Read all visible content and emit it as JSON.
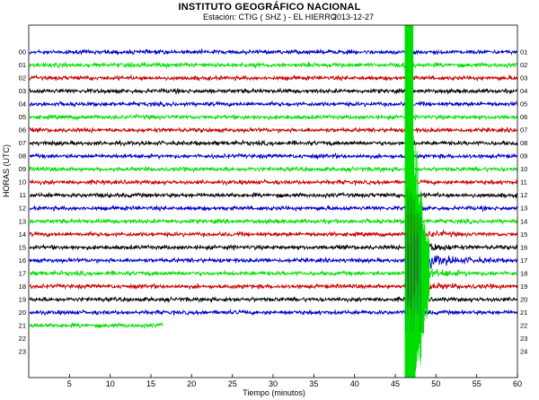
{
  "header": {
    "title": "INSTITUTO GEOGRÁFICO NACIONAL",
    "station": "Estación:  CTIG ( SHZ ) - EL HIERRO",
    "date": "2013-12-27"
  },
  "chart_data": {
    "type": "line",
    "title": "INSTITUTO GEOGRÁFICO NACIONAL",
    "ylabel": "HORAS (UTC)",
    "xlabel": "Tiempo (minutos)",
    "xlim": [
      0,
      60
    ],
    "x_ticks": [
      5,
      10,
      15,
      20,
      25,
      30,
      35,
      40,
      45,
      50,
      55,
      60
    ],
    "x_tick_labels": [
      "5",
      "10",
      "15",
      "20",
      "25",
      "30",
      "35",
      "40",
      "45",
      "50",
      "55",
      "60"
    ],
    "rows": [
      "00",
      "01",
      "02",
      "03",
      "04",
      "05",
      "06",
      "07",
      "08",
      "09",
      "10",
      "11",
      "12",
      "13",
      "14",
      "15",
      "16",
      "17",
      "18",
      "19",
      "20",
      "21",
      "22",
      "23"
    ],
    "right_labels": [
      "01",
      "02",
      "03",
      "04",
      "05",
      "06",
      "07",
      "08",
      "09",
      "10",
      "11",
      "12",
      "13",
      "14",
      "15",
      "16",
      "17",
      "18",
      "19",
      "20",
      "21",
      "22",
      "23",
      "24"
    ],
    "row_colors": [
      "#0000cc",
      "#00dd00",
      "#cc0000",
      "#000000"
    ],
    "recorded_until": {
      "hour": 21,
      "minute": 16.5
    },
    "event": {
      "start_hour": 16,
      "start_minute": 46.3,
      "peak_minute_range": [
        46.3,
        47.2
      ],
      "coda_end_minute": 58
    },
    "grid": false
  }
}
